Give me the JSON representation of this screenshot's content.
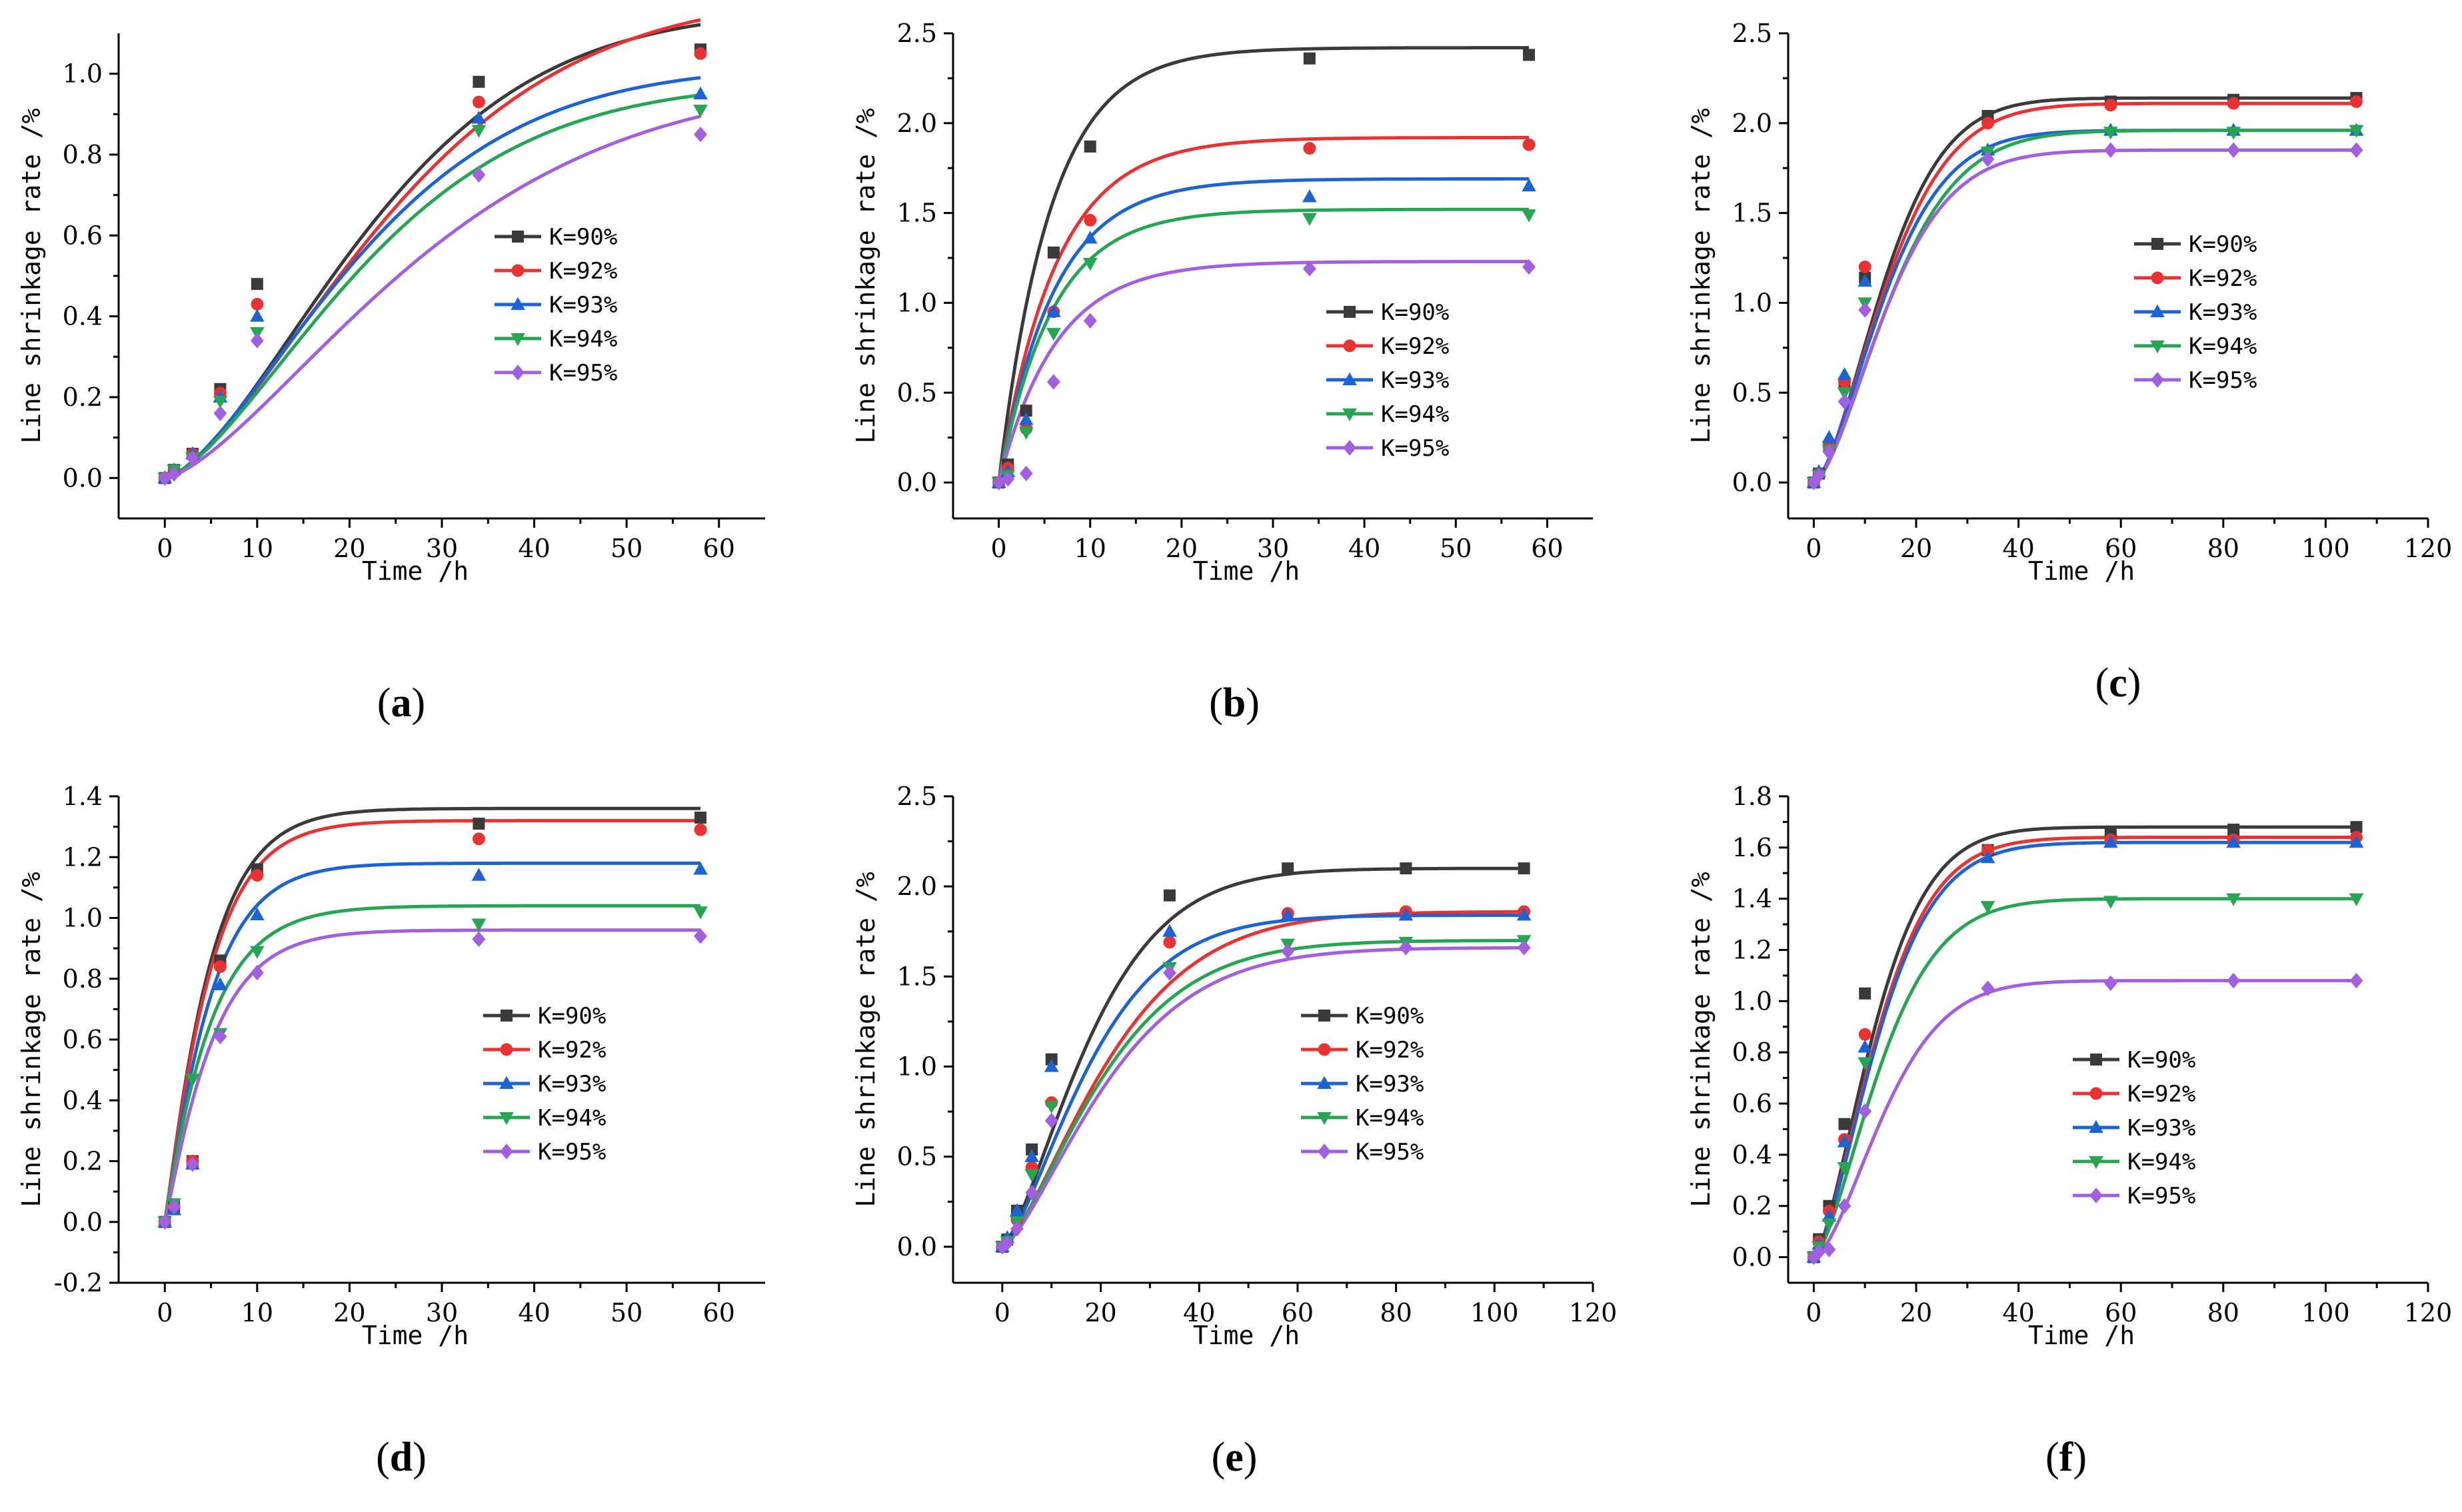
{
  "series_styles": [
    {
      "name": "K=90%",
      "color": "#3a3a3a",
      "marker": "square"
    },
    {
      "name": "K=92%",
      "color": "#ea3232",
      "marker": "circle"
    },
    {
      "name": "K=93%",
      "color": "#1c63d6",
      "marker": "triangle-up"
    },
    {
      "name": "K=94%",
      "color": "#26a653",
      "marker": "triangle-down"
    },
    {
      "name": "K=95%",
      "color": "#a25fe0",
      "marker": "diamond"
    }
  ],
  "chart_data": [
    {
      "id": "a",
      "type": "scatter",
      "panel_label": "a",
      "xlabel": "Time /h",
      "ylabel": "Line shrinkage rate /%",
      "xlim": [
        -5,
        65
      ],
      "ylim": [
        -0.1,
        1.1
      ],
      "xticks": [
        0,
        10,
        20,
        30,
        40,
        50,
        60
      ],
      "yticks": [
        0.0,
        0.2,
        0.4,
        0.6,
        0.8,
        1.0
      ],
      "ytick_labels": [
        "0.0",
        "0.2",
        "0.4",
        "0.6",
        "0.8",
        "1.0"
      ],
      "x": [
        0,
        1,
        3,
        6,
        10,
        34,
        58
      ],
      "series": [
        {
          "name": "K=90%",
          "values": [
            0,
            0.02,
            0.06,
            0.22,
            0.48,
            0.98,
            1.06
          ],
          "fit": {
            "type": "power",
            "A": 1.16,
            "k": 0.038,
            "n": 1.55
          }
        },
        {
          "name": "K=92%",
          "values": [
            0,
            0.02,
            0.06,
            0.21,
            0.43,
            0.93,
            1.05
          ],
          "fit": {
            "type": "power",
            "A": 1.2,
            "k": 0.035,
            "n": 1.5
          }
        },
        {
          "name": "K=93%",
          "values": [
            0,
            0.02,
            0.06,
            0.2,
            0.4,
            0.89,
            0.95
          ],
          "fit": {
            "type": "power",
            "A": 1.02,
            "k": 0.04,
            "n": 1.5
          }
        },
        {
          "name": "K=94%",
          "values": [
            0,
            0.02,
            0.05,
            0.19,
            0.36,
            0.86,
            0.91
          ],
          "fit": {
            "type": "power",
            "A": 0.98,
            "k": 0.039,
            "n": 1.5
          }
        },
        {
          "name": "K=95%",
          "values": [
            0,
            0.01,
            0.05,
            0.16,
            0.34,
            0.75,
            0.85
          ],
          "fit": {
            "type": "power",
            "A": 0.99,
            "k": 0.031,
            "n": 1.45
          }
        }
      ],
      "legend": "right"
    },
    {
      "id": "b",
      "type": "scatter",
      "panel_label": "b",
      "xlabel": "Time /h",
      "ylabel": "Line shrinkage rate /%",
      "xlim": [
        -5,
        65
      ],
      "ylim": [
        -0.2,
        2.5
      ],
      "xticks": [
        0,
        10,
        20,
        30,
        40,
        50,
        60
      ],
      "yticks": [
        0.0,
        0.5,
        1.0,
        1.5,
        2.0,
        2.5
      ],
      "ytick_labels": [
        "0.0",
        "0.5",
        "1.0",
        "1.5",
        "2.0",
        "2.5"
      ],
      "x": [
        0,
        1,
        3,
        6,
        10,
        34,
        58
      ],
      "series": [
        {
          "name": "K=90%",
          "values": [
            0,
            0.1,
            0.4,
            1.28,
            1.87,
            2.36,
            2.38
          ],
          "fit": {
            "type": "power",
            "A": 2.42,
            "k": 0.175,
            "n": 1.0
          }
        },
        {
          "name": "K=92%",
          "values": [
            0,
            0.08,
            0.3,
            0.95,
            1.46,
            1.86,
            1.88
          ],
          "fit": {
            "type": "power",
            "A": 1.92,
            "k": 0.16,
            "n": 1.0
          }
        },
        {
          "name": "K=93%",
          "values": [
            0,
            0.06,
            0.35,
            0.95,
            1.36,
            1.59,
            1.65
          ],
          "fit": {
            "type": "power",
            "A": 1.69,
            "k": 0.165,
            "n": 1.0
          }
        },
        {
          "name": "K=94%",
          "values": [
            0,
            0.04,
            0.28,
            0.83,
            1.22,
            1.47,
            1.49
          ],
          "fit": {
            "type": "power",
            "A": 1.52,
            "k": 0.17,
            "n": 1.0
          }
        },
        {
          "name": "K=95%",
          "values": [
            0,
            0.02,
            0.05,
            0.56,
            0.9,
            1.19,
            1.2
          ],
          "fit": {
            "type": "power",
            "A": 1.23,
            "k": 0.16,
            "n": 1.0
          }
        }
      ],
      "legend": "right"
    },
    {
      "id": "c",
      "type": "scatter",
      "panel_label": "c",
      "xlabel": "Time /h",
      "ylabel": "Line shrinkage rate /%",
      "xlim": [
        -5,
        120
      ],
      "ylim": [
        -0.2,
        2.5
      ],
      "xticks": [
        0,
        20,
        40,
        60,
        80,
        100,
        120
      ],
      "yticks": [
        0.0,
        0.5,
        1.0,
        1.5,
        2.0,
        2.5
      ],
      "ytick_labels": [
        "0.0",
        "0.5",
        "1.0",
        "1.5",
        "2.0",
        "2.5"
      ],
      "x": [
        0,
        1,
        3,
        6,
        10,
        34,
        58,
        82,
        106
      ],
      "series": [
        {
          "name": "K=90%",
          "values": [
            0,
            0.05,
            0.2,
            0.55,
            1.14,
            2.04,
            2.12,
            2.13,
            2.14
          ],
          "fit": {
            "type": "power",
            "A": 2.14,
            "k": 0.06,
            "n": 1.6
          }
        },
        {
          "name": "K=92%",
          "values": [
            0,
            0.05,
            0.2,
            0.56,
            1.2,
            2.0,
            2.1,
            2.11,
            2.12
          ],
          "fit": {
            "type": "power",
            "A": 2.11,
            "k": 0.058,
            "n": 1.55
          }
        },
        {
          "name": "K=93%",
          "values": [
            0,
            0.06,
            0.25,
            0.6,
            1.12,
            1.85,
            1.96,
            1.96,
            1.96
          ],
          "fit": {
            "type": "power",
            "A": 1.96,
            "k": 0.06,
            "n": 1.55
          }
        },
        {
          "name": "K=94%",
          "values": [
            0,
            0.04,
            0.18,
            0.5,
            1.0,
            1.84,
            1.95,
            1.95,
            1.96
          ],
          "fit": {
            "type": "power",
            "A": 1.96,
            "k": 0.055,
            "n": 1.55
          }
        },
        {
          "name": "K=95%",
          "values": [
            0,
            0.04,
            0.17,
            0.45,
            0.96,
            1.8,
            1.85,
            1.85,
            1.85
          ],
          "fit": {
            "type": "power",
            "A": 1.85,
            "k": 0.058,
            "n": 1.55
          }
        }
      ],
      "legend": "right"
    },
    {
      "id": "d",
      "type": "scatter",
      "panel_label": "d",
      "xlabel": "Time /h",
      "ylabel": "Line shrinkage rate /%",
      "xlim": [
        -5,
        65
      ],
      "ylim": [
        -0.2,
        1.4
      ],
      "xticks": [
        0,
        10,
        20,
        30,
        40,
        50,
        60
      ],
      "yticks": [
        -0.2,
        0.0,
        0.2,
        0.4,
        0.6,
        0.8,
        1.0,
        1.2,
        1.4
      ],
      "ytick_labels": [
        "-0.2",
        "0.0",
        "0.2",
        "0.4",
        "0.6",
        "0.8",
        "1.0",
        "1.2",
        "1.4"
      ],
      "x": [
        0,
        1,
        3,
        6,
        10,
        34,
        58
      ],
      "series": [
        {
          "name": "K=90%",
          "values": [
            0,
            0.05,
            0.2,
            0.86,
            1.16,
            1.31,
            1.33
          ],
          "fit": {
            "type": "power",
            "A": 1.36,
            "k": 0.2,
            "n": 1.1
          }
        },
        {
          "name": "K=92%",
          "values": [
            0,
            0.05,
            0.2,
            0.84,
            1.14,
            1.26,
            1.29
          ],
          "fit": {
            "type": "power",
            "A": 1.32,
            "k": 0.2,
            "n": 1.1
          }
        },
        {
          "name": "K=93%",
          "values": [
            0,
            0.04,
            0.19,
            0.78,
            1.01,
            1.14,
            1.16
          ],
          "fit": {
            "type": "power",
            "A": 1.18,
            "k": 0.2,
            "n": 1.1
          }
        },
        {
          "name": "K=94%",
          "values": [
            0,
            0.06,
            0.47,
            0.62,
            0.89,
            0.98,
            1.02
          ],
          "fit": {
            "type": "power",
            "A": 1.04,
            "k": 0.2,
            "n": 1.05
          }
        },
        {
          "name": "K=95%",
          "values": [
            0,
            0.05,
            0.19,
            0.61,
            0.82,
            0.93,
            0.94
          ],
          "fit": {
            "type": "power",
            "A": 0.96,
            "k": 0.19,
            "n": 1.1
          }
        }
      ],
      "legend": "right"
    },
    {
      "id": "e",
      "type": "scatter",
      "panel_label": "e",
      "xlabel": "Time /h",
      "ylabel": "Line shrinkage rate /%",
      "xlim": [
        -10,
        120
      ],
      "ylim": [
        -0.2,
        2.5
      ],
      "xticks": [
        0,
        20,
        40,
        60,
        80,
        100,
        120
      ],
      "yticks": [
        0.0,
        0.5,
        1.0,
        1.5,
        2.0,
        2.5
      ],
      "ytick_labels": [
        "0.0",
        "0.5",
        "1.0",
        "1.5",
        "2.0",
        "2.5"
      ],
      "x": [
        0,
        1,
        3,
        6,
        10,
        34,
        58,
        82,
        106
      ],
      "series": [
        {
          "name": "K=90%",
          "values": [
            0,
            0.04,
            0.2,
            0.54,
            1.04,
            1.95,
            2.1,
            2.1,
            2.1
          ],
          "fit": {
            "type": "power",
            "A": 2.1,
            "k": 0.048,
            "n": 1.4
          }
        },
        {
          "name": "K=92%",
          "values": [
            0,
            0.03,
            0.15,
            0.44,
            0.8,
            1.69,
            1.85,
            1.86,
            1.86
          ],
          "fit": {
            "type": "power",
            "A": 1.86,
            "k": 0.04,
            "n": 1.4
          }
        },
        {
          "name": "K=93%",
          "values": [
            0,
            0.05,
            0.2,
            0.5,
            1.0,
            1.75,
            1.84,
            1.84,
            1.84
          ],
          "fit": {
            "type": "power",
            "A": 1.84,
            "k": 0.048,
            "n": 1.4
          }
        },
        {
          "name": "K=94%",
          "values": [
            0,
            0.03,
            0.14,
            0.4,
            0.78,
            1.55,
            1.68,
            1.69,
            1.7
          ],
          "fit": {
            "type": "power",
            "A": 1.7,
            "k": 0.042,
            "n": 1.4
          }
        },
        {
          "name": "K=95%",
          "values": [
            0,
            0.02,
            0.1,
            0.3,
            0.7,
            1.52,
            1.64,
            1.66,
            1.66
          ],
          "fit": {
            "type": "power",
            "A": 1.66,
            "k": 0.04,
            "n": 1.4
          }
        }
      ],
      "legend": "right"
    },
    {
      "id": "f",
      "type": "scatter",
      "panel_label": "f",
      "xlabel": "Time /h",
      "ylabel": "Line shrinkage rate /%",
      "xlim": [
        -5,
        120
      ],
      "ylim": [
        -0.1,
        1.8
      ],
      "xticks": [
        0,
        20,
        40,
        60,
        80,
        100,
        120
      ],
      "yticks": [
        0.0,
        0.2,
        0.4,
        0.6,
        0.8,
        1.0,
        1.2,
        1.4,
        1.6,
        1.8
      ],
      "ytick_labels": [
        "0.0",
        "0.2",
        "0.4",
        "0.6",
        "0.8",
        "1.0",
        "1.2",
        "1.4",
        "1.6",
        "1.8"
      ],
      "x": [
        0,
        1,
        3,
        6,
        10,
        34,
        58,
        82,
        106
      ],
      "series": [
        {
          "name": "K=90%",
          "values": [
            0,
            0.07,
            0.2,
            0.52,
            1.03,
            1.59,
            1.66,
            1.67,
            1.68
          ],
          "fit": {
            "type": "power",
            "A": 1.68,
            "k": 0.07,
            "n": 1.5
          }
        },
        {
          "name": "K=92%",
          "values": [
            0,
            0.06,
            0.18,
            0.46,
            0.87,
            1.59,
            1.63,
            1.63,
            1.64
          ],
          "fit": {
            "type": "power",
            "A": 1.64,
            "k": 0.067,
            "n": 1.5
          }
        },
        {
          "name": "K=93%",
          "values": [
            0,
            0.05,
            0.16,
            0.45,
            0.82,
            1.56,
            1.62,
            1.62,
            1.62
          ],
          "fit": {
            "type": "power",
            "A": 1.62,
            "k": 0.066,
            "n": 1.5
          }
        },
        {
          "name": "K=94%",
          "values": [
            0,
            0.04,
            0.13,
            0.35,
            0.76,
            1.37,
            1.39,
            1.4,
            1.4
          ],
          "fit": {
            "type": "power",
            "A": 1.4,
            "k": 0.064,
            "n": 1.5
          }
        },
        {
          "name": "K=95%",
          "values": [
            0,
            0.02,
            0.03,
            0.2,
            0.57,
            1.05,
            1.07,
            1.08,
            1.08
          ],
          "fit": {
            "type": "power",
            "A": 1.08,
            "k": 0.06,
            "n": 1.6
          }
        }
      ],
      "legend": "right"
    }
  ]
}
